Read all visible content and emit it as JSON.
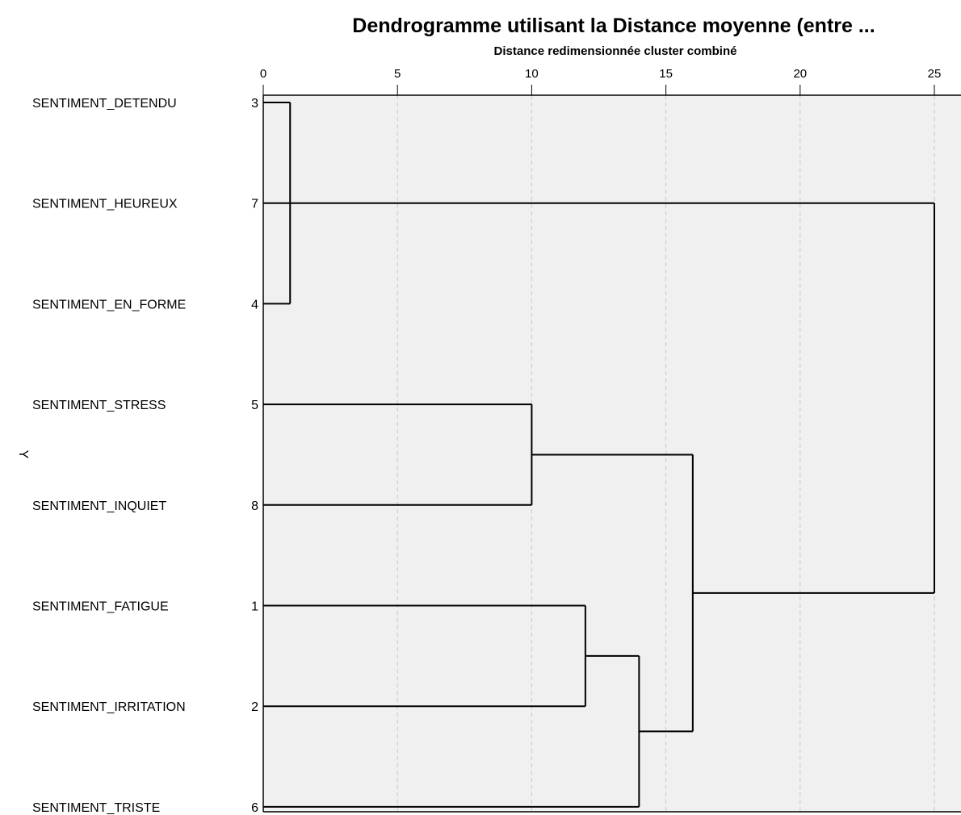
{
  "chart_data": {
    "type": "dendrogram",
    "title": "Dendrogramme utilisant la Distance moyenne (entre ...",
    "xlabel": "Distance redimensionnée cluster combiné",
    "ylabel": "Y",
    "xlim": [
      0,
      25
    ],
    "ticks": [
      0,
      5,
      10,
      15,
      20,
      25
    ],
    "grid": true,
    "leaves": [
      {
        "label": "SENTIMENT_DETENDU",
        "num": "3"
      },
      {
        "label": "SENTIMENT_HEUREUX",
        "num": "7"
      },
      {
        "label": "SENTIMENT_EN_FORME",
        "num": "4"
      },
      {
        "label": "SENTIMENT_STRESS",
        "num": "5"
      },
      {
        "label": "SENTIMENT_INQUIET",
        "num": "8"
      },
      {
        "label": "SENTIMENT_FATIGUE",
        "num": "1"
      },
      {
        "label": "SENTIMENT_IRRITATION",
        "num": "2"
      },
      {
        "label": "SENTIMENT_TRISTE",
        "num": "6"
      }
    ],
    "merges": [
      {
        "id": "A",
        "children": [
          "L0",
          "L2"
        ],
        "distance": 1
      },
      {
        "id": "B",
        "children": [
          "L3",
          "L4"
        ],
        "distance": 10
      },
      {
        "id": "C",
        "children": [
          "L5",
          "L6"
        ],
        "distance": 12
      },
      {
        "id": "D",
        "children": [
          "C",
          "L7"
        ],
        "distance": 14
      },
      {
        "id": "E",
        "children": [
          "B",
          "D"
        ],
        "distance": 16
      },
      {
        "id": "F",
        "children": [
          "L1",
          "E"
        ],
        "distance": 25
      }
    ],
    "colors": {
      "background": "#f0f0f0",
      "line": "#000000",
      "grid": "#c8c8c8"
    }
  }
}
